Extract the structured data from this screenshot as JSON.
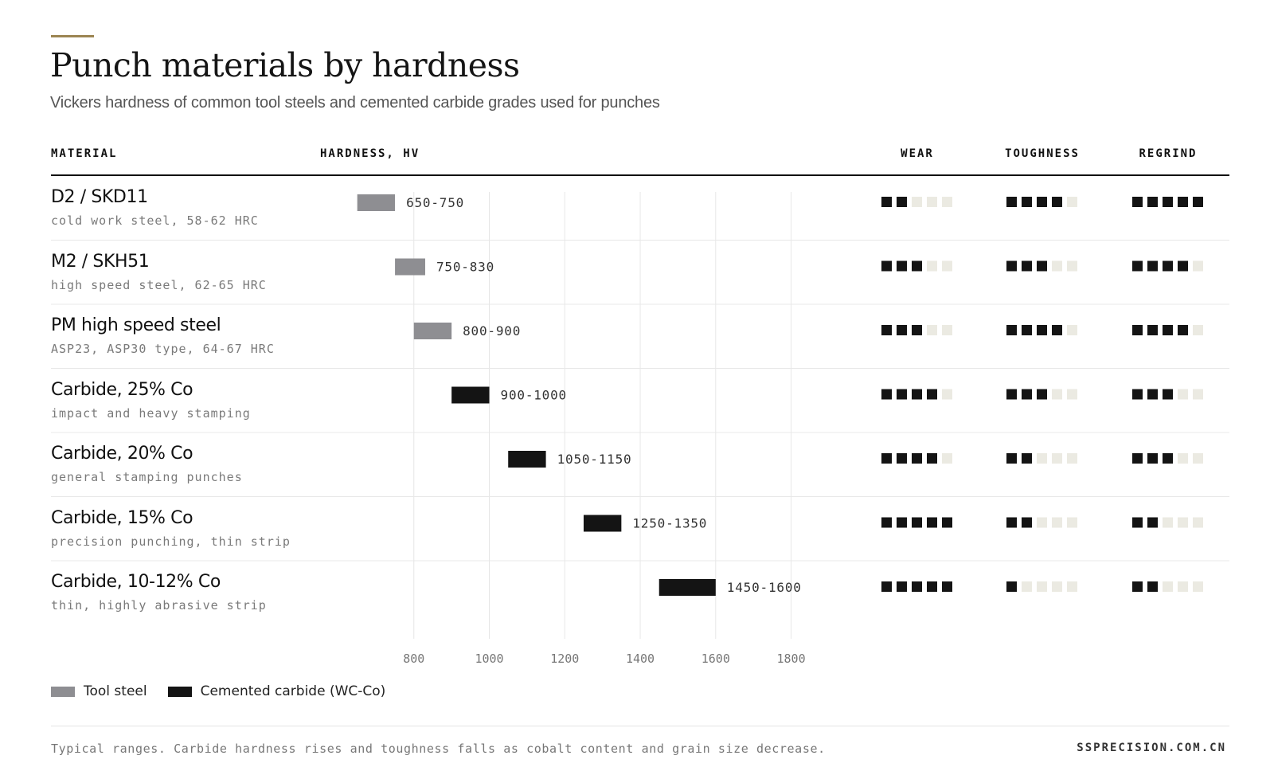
{
  "header": {
    "title": "Punch materials by hardness",
    "subtitle": "Vickers hardness of common tool steels and cemented carbide grades used for punches"
  },
  "columns": {
    "material": "MATERIAL",
    "hardness": "HARDNESS, HV",
    "wear": "WEAR",
    "toughness": "TOUGHNESS",
    "regrind": "REGRIND"
  },
  "colors": {
    "tool_steel": "#8e8e92",
    "carbide": "#141414",
    "dot_on": "#141414",
    "dot_off": "#ebeae2",
    "gridline": "#e6e6e6",
    "accent": "#9c8552"
  },
  "chart_data": {
    "type": "bar",
    "orientation": "horizontal-range",
    "xlabel": "HARDNESS, HV",
    "xlim": [
      600,
      1900
    ],
    "xticks": [
      800,
      1000,
      1200,
      1400,
      1600,
      1800
    ],
    "grid": true,
    "legend_placement": "bottom-left",
    "series": [
      {
        "name": "Tool steel",
        "key": "tool_steel"
      },
      {
        "name": "Cemented carbide (WC-Co)",
        "key": "carbide"
      }
    ],
    "rows": [
      {
        "name": "D2 / SKD11",
        "desc": "cold work steel, 58-62 HRC",
        "min": 650,
        "max": 750,
        "label": "650-750",
        "series": "tool_steel",
        "wear": 2,
        "toughness": 4,
        "regrind": 5
      },
      {
        "name": "M2 / SKH51",
        "desc": "high speed steel, 62-65 HRC",
        "min": 750,
        "max": 830,
        "label": "750-830",
        "series": "tool_steel",
        "wear": 3,
        "toughness": 3,
        "regrind": 4
      },
      {
        "name": "PM high speed steel",
        "desc": "ASP23, ASP30 type, 64-67 HRC",
        "min": 800,
        "max": 900,
        "label": "800-900",
        "series": "tool_steel",
        "wear": 3,
        "toughness": 4,
        "regrind": 4
      },
      {
        "name": "Carbide, 25% Co",
        "desc": "impact and heavy stamping",
        "min": 900,
        "max": 1000,
        "label": "900-1000",
        "series": "carbide",
        "wear": 4,
        "toughness": 3,
        "regrind": 3
      },
      {
        "name": "Carbide, 20% Co",
        "desc": "general stamping punches",
        "min": 1050,
        "max": 1150,
        "label": "1050-1150",
        "series": "carbide",
        "wear": 4,
        "toughness": 2,
        "regrind": 3
      },
      {
        "name": "Carbide, 15% Co",
        "desc": "precision punching, thin strip",
        "min": 1250,
        "max": 1350,
        "label": "1250-1350",
        "series": "carbide",
        "wear": 5,
        "toughness": 2,
        "regrind": 2
      },
      {
        "name": "Carbide, 10-12% Co",
        "desc": "thin, highly abrasive strip",
        "min": 1450,
        "max": 1600,
        "label": "1450-1600",
        "series": "carbide",
        "wear": 5,
        "toughness": 1,
        "regrind": 2
      }
    ],
    "rating_max": 5
  },
  "footer": {
    "note": "Typical ranges. Carbide hardness rises and toughness falls as cobalt content and grain size decrease.",
    "brand": "SSPRECISION.COM.CN"
  }
}
